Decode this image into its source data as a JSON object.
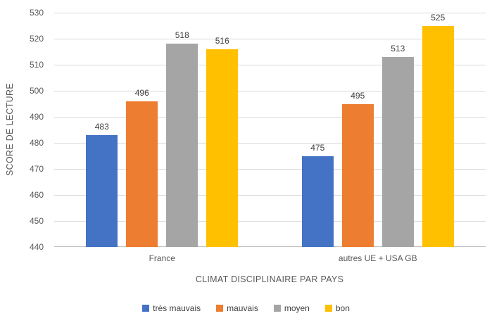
{
  "chart_data": {
    "type": "bar",
    "title": "",
    "categories": [
      "France",
      "autres UE + USA GB"
    ],
    "series": [
      {
        "name": "très mauvais",
        "color": "#4472C4",
        "values": [
          483,
          475
        ]
      },
      {
        "name": "mauvais",
        "color": "#ED7D31",
        "values": [
          496,
          495
        ]
      },
      {
        "name": "moyen",
        "color": "#A5A5A5",
        "values": [
          518,
          513
        ]
      },
      {
        "name": "bon",
        "color": "#FFC000",
        "values": [
          516,
          525
        ]
      }
    ],
    "xlabel": "CLIMAT DISCIPLINAIRE PAR PAYS",
    "ylabel": "SCORE DE LECTURE",
    "ylim": [
      440,
      530
    ],
    "ytick_step": 10,
    "yticks": [
      440,
      450,
      460,
      470,
      480,
      490,
      500,
      510,
      520,
      530
    ],
    "grid": true,
    "grid_color": "#D9D9D9",
    "data_labels": true,
    "legend_position": "bottom"
  }
}
